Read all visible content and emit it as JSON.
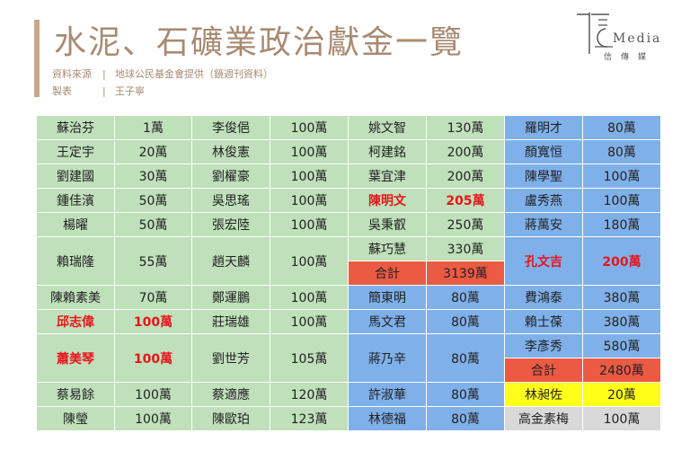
{
  "header": {
    "title": "水泥、石礦業政治獻金一覽",
    "source_label": "資料來源",
    "source_text": "地球公民基金會提供（鏡週刊資料）",
    "maker_label": "製表",
    "maker_text": "王子寧",
    "separator": "|"
  },
  "logo": {
    "word": "Media",
    "sub": "信傳媒"
  },
  "colors": {
    "green": "#bfe0ba",
    "blue": "#7fb0ea",
    "red_total": "#eb5a43",
    "yellow": "#ffff19",
    "gray": "#d9d9d9",
    "highlight_text": "#e8141b",
    "title": "#a88b73"
  },
  "table": {
    "col1": {
      "rows": [
        {
          "name": "蘇治芬",
          "amount": "1萬"
        },
        {
          "name": "王定宇",
          "amount": "20萬"
        },
        {
          "name": "劉建國",
          "amount": "30萬"
        },
        {
          "name": "鍾佳濱",
          "amount": "50萬"
        },
        {
          "name": "楊曜",
          "amount": "50萬"
        },
        {
          "name": "賴瑞隆",
          "amount": "55萬"
        },
        {
          "name": "陳賴素美",
          "amount": "70萬"
        },
        {
          "name": "邱志偉",
          "amount": "100萬"
        },
        {
          "name": "蕭美琴",
          "amount": "100萬"
        },
        {
          "name": "蔡易餘",
          "amount": "100萬"
        },
        {
          "name": "陳瑩",
          "amount": "100萬"
        }
      ]
    },
    "col2": {
      "rows": [
        {
          "name": "李俊俋",
          "amount": "100萬"
        },
        {
          "name": "林俊憲",
          "amount": "100萬"
        },
        {
          "name": "劉櫂豪",
          "amount": "100萬"
        },
        {
          "name": "吳思瑤",
          "amount": "100萬"
        },
        {
          "name": "張宏陸",
          "amount": "100萬"
        },
        {
          "name": "趙天麟",
          "amount": "100萬"
        },
        {
          "name": "鄭運鵬",
          "amount": "100萬"
        },
        {
          "name": "莊瑞雄",
          "amount": "100萬"
        },
        {
          "name": "劉世芳",
          "amount": "105萬"
        },
        {
          "name": "蔡適應",
          "amount": "120萬"
        },
        {
          "name": "陳歐珀",
          "amount": "123萬"
        }
      ]
    },
    "col3": {
      "rows": [
        {
          "name": "姚文智",
          "amount": "130萬"
        },
        {
          "name": "柯建銘",
          "amount": "200萬"
        },
        {
          "name": "葉宜津",
          "amount": "200萬"
        },
        {
          "name": "陳明文",
          "amount": "205萬"
        },
        {
          "name": "吳秉叡",
          "amount": "250萬"
        },
        {
          "name": "蘇巧慧",
          "amount": "330萬"
        }
      ],
      "total": {
        "label": "合計",
        "amount": "3139萬"
      },
      "blue_rows": [
        {
          "name": "簡東明",
          "amount": "80萬"
        },
        {
          "name": "馬文君",
          "amount": "80萬"
        },
        {
          "name": "蔣乃辛",
          "amount": "80萬"
        },
        {
          "name": "許淑華",
          "amount": "80萬"
        },
        {
          "name": "林德福",
          "amount": "80萬"
        }
      ]
    },
    "col4": {
      "rows": [
        {
          "name": "羅明才",
          "amount": "80萬"
        },
        {
          "name": "顏寬恒",
          "amount": "80萬"
        },
        {
          "name": "陳學聖",
          "amount": "100萬"
        },
        {
          "name": "盧秀燕",
          "amount": "100萬"
        },
        {
          "name": "蔣萬安",
          "amount": "180萬"
        },
        {
          "name": "孔文吉",
          "amount": "200萬"
        },
        {
          "name": "費鴻泰",
          "amount": "380萬"
        },
        {
          "name": "賴士葆",
          "amount": "380萬"
        },
        {
          "name": "李彥秀",
          "amount": "580萬"
        }
      ],
      "total": {
        "label": "合計",
        "amount": "2480萬"
      },
      "yellow_row": {
        "name": "林昶佐",
        "amount": "20萬"
      },
      "gray_row": {
        "name": "高金素梅",
        "amount": "100萬"
      }
    }
  }
}
